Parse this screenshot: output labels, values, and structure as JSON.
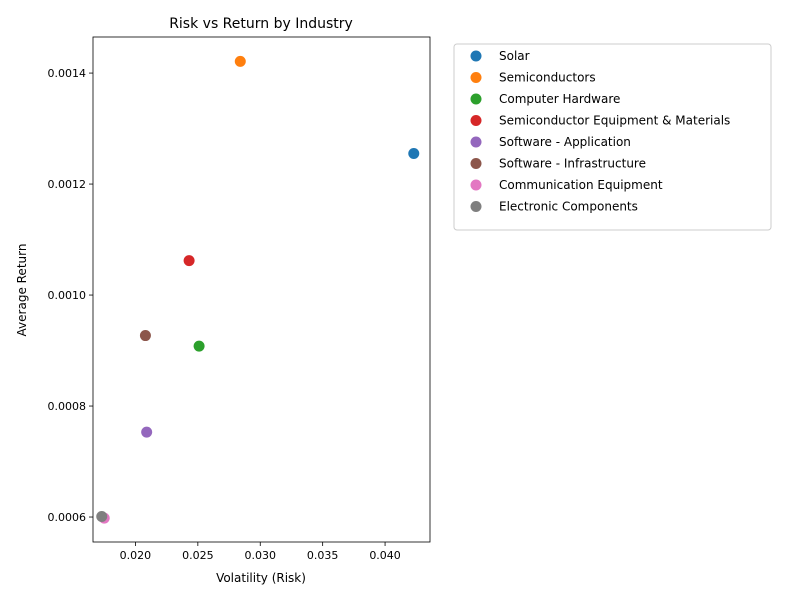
{
  "chart_data": {
    "type": "scatter",
    "title": "Risk vs Return by Industry",
    "xlabel": "Volatility (Risk)",
    "ylabel": "Average Return",
    "xlim": [
      0.0166,
      0.0436
    ],
    "ylim": [
      0.000555,
      0.001465
    ],
    "xticks": [
      0.02,
      0.025,
      0.03,
      0.035,
      0.04
    ],
    "xtick_labels": [
      "0.020",
      "0.025",
      "0.030",
      "0.035",
      "0.040"
    ],
    "yticks": [
      0.0006,
      0.0008,
      0.001,
      0.0012,
      0.0014
    ],
    "ytick_labels": [
      "0.0006",
      "0.0008",
      "0.0010",
      "0.0012",
      "0.0014"
    ],
    "grid": false,
    "legend_position": "outside-top-right",
    "series": [
      {
        "name": "Solar",
        "color": "#1f77b4",
        "x": 0.0423,
        "y": 0.001255
      },
      {
        "name": "Semiconductors",
        "color": "#ff7f0e",
        "x": 0.0284,
        "y": 0.001421
      },
      {
        "name": "Computer Hardware",
        "color": "#2ca02c",
        "x": 0.0251,
        "y": 0.000908
      },
      {
        "name": "Semiconductor Equipment & Materials",
        "color": "#d62728",
        "x": 0.0243,
        "y": 0.001062
      },
      {
        "name": "Software - Application",
        "color": "#9467bd",
        "x": 0.0209,
        "y": 0.000753
      },
      {
        "name": "Software - Infrastructure",
        "color": "#8c564b",
        "x": 0.0208,
        "y": 0.000927
      },
      {
        "name": "Communication Equipment",
        "color": "#e377c2",
        "x": 0.0175,
        "y": 0.000598
      },
      {
        "name": "Electronic Components",
        "color": "#7f7f7f",
        "x": 0.0173,
        "y": 0.000601
      }
    ]
  }
}
